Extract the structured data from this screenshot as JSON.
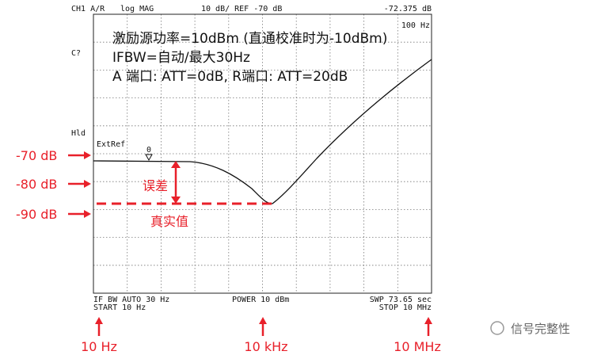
{
  "header": {
    "channel": "CH1 A/R",
    "format": "log MAG",
    "scale": "10 dB/ REF -70 dB",
    "marker_value": "-72.375 dB"
  },
  "status": {
    "cal": "C?",
    "hold": "Hld",
    "ext_ref": "ExtRef",
    "marker": "0",
    "marker_freq": "100 Hz"
  },
  "notes": [
    "激励源功率=10dBm (直通校准时为-10dBm)",
    "IFBW=自动/最大30Hz",
    "A 端口: ATT=0dB, R端口: ATT=20dB"
  ],
  "footer": {
    "ifbw": "IF BW  AUTO  30 Hz",
    "power": "POWER  10 dBm",
    "sweep": "SWP  73.65 sec",
    "start": "START  10 Hz",
    "stop": "STOP  10 MHz"
  },
  "annotations": {
    "levels": [
      "-70 dB",
      "-80 dB",
      "-90 dB"
    ],
    "error": "误差",
    "true_value": "真实值",
    "frequencies": [
      "10 Hz",
      "10 kHz",
      "10 MHz"
    ]
  },
  "watermark": "信号完整性"
}
